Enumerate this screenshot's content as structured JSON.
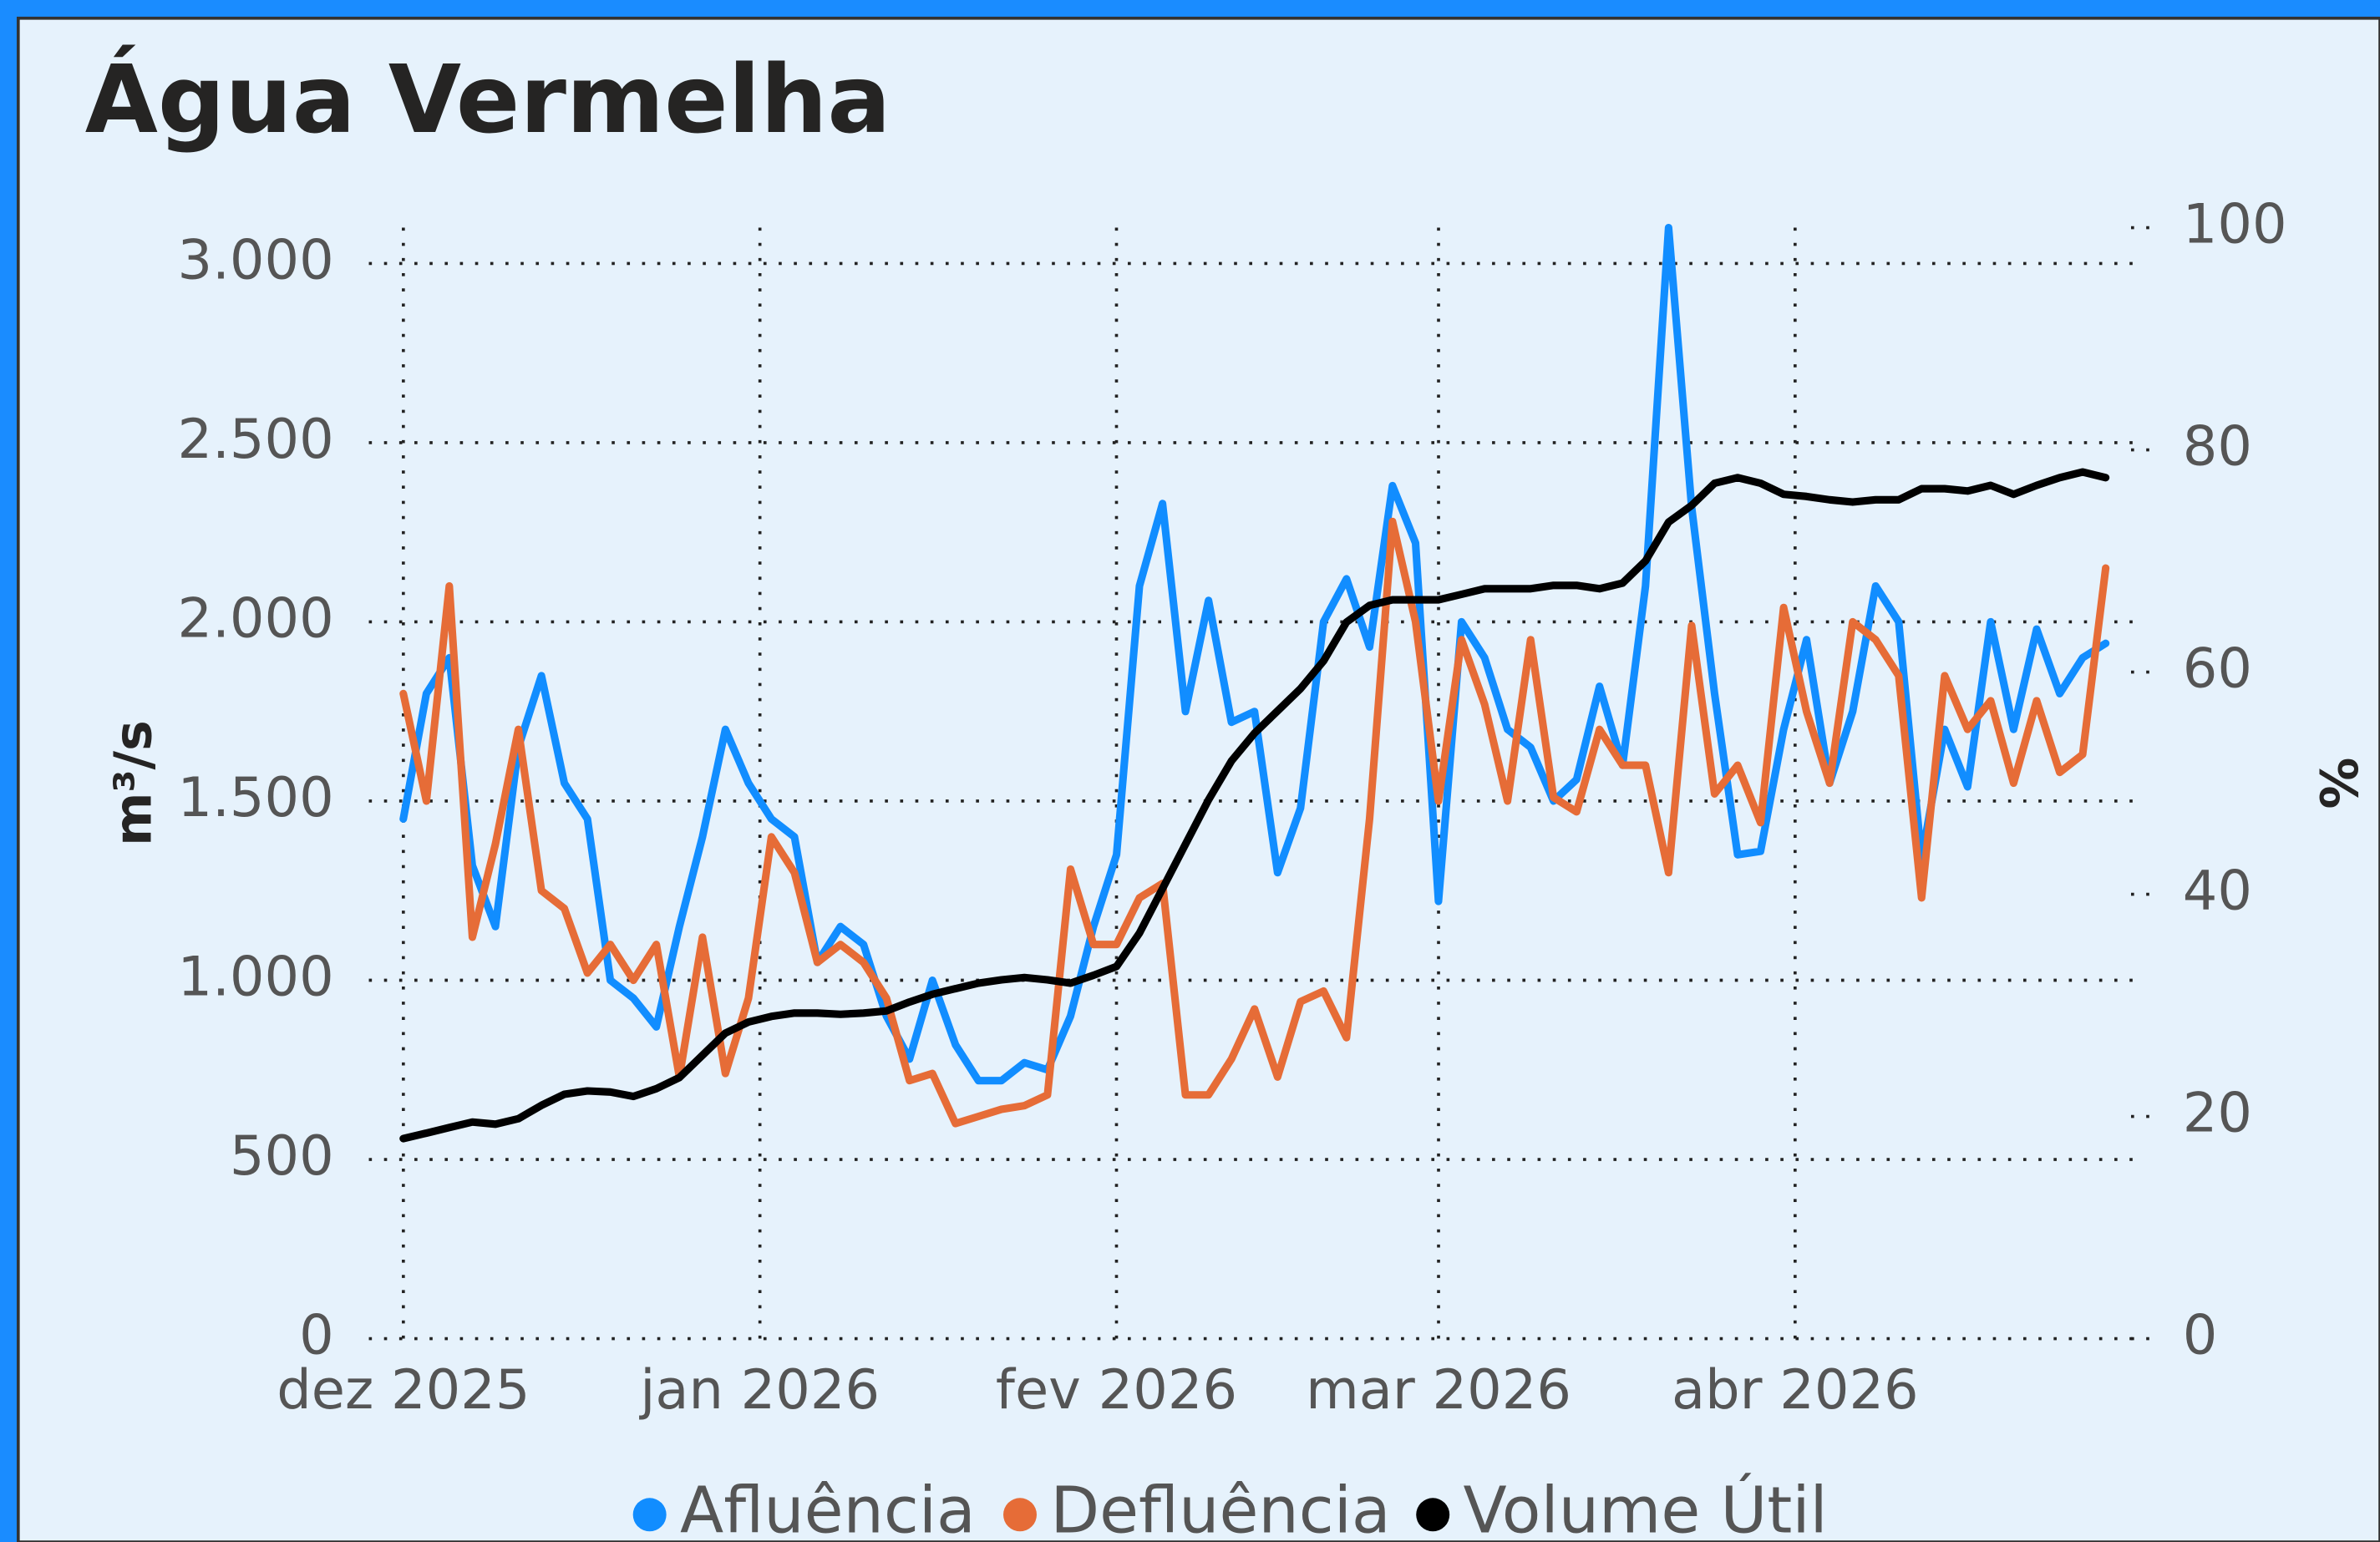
{
  "chart_data": {
    "type": "line",
    "title": "Água Vermelha",
    "y_label": "m³/s",
    "y2_label": "%",
    "x": [
      0,
      2,
      4,
      6,
      8,
      10,
      12,
      14,
      16,
      18,
      20,
      22,
      24,
      26,
      28,
      30,
      32,
      34,
      36,
      38,
      40,
      42,
      44,
      46,
      48,
      50,
      52,
      54,
      56,
      58,
      60,
      62,
      64,
      66,
      68,
      70,
      72,
      74,
      76,
      78,
      80,
      82,
      84,
      86,
      88,
      90,
      92,
      94,
      96,
      98,
      100,
      102,
      104,
      106,
      108,
      110,
      112,
      114,
      116,
      118,
      120,
      122,
      124,
      126,
      128,
      130,
      132,
      134,
      136,
      138,
      140,
      142,
      144,
      146,
      148
    ],
    "xlim": [
      -3,
      151
    ],
    "xticks": [
      {
        "value": 0,
        "label": "dez 2025"
      },
      {
        "value": 31,
        "label": "jan 2026"
      },
      {
        "value": 62,
        "label": "fev 2026"
      },
      {
        "value": 90,
        "label": "mar 2026"
      },
      {
        "value": 121,
        "label": "abr 2026"
      }
    ],
    "ylim": [
      0,
      3100
    ],
    "yticks": [
      0,
      500,
      {
        "value": 1000,
        "label": "1.000"
      },
      {
        "value": 1500,
        "label": "1.500"
      },
      {
        "value": 2000,
        "label": "2.000"
      },
      {
        "value": 2500,
        "label": "2.500"
      },
      {
        "value": 3000,
        "label": "3.000"
      }
    ],
    "y2lim": [
      0,
      100
    ],
    "y2ticks": [
      0,
      20,
      40,
      60,
      80,
      100
    ],
    "grid": true,
    "legend": "bottom",
    "series": [
      {
        "name": "Afluência",
        "color": "#118dff",
        "values": [
          1450,
          1800,
          1900,
          1320,
          1150,
          1650,
          1850,
          1550,
          1450,
          1000,
          950,
          870,
          1150,
          1400,
          1700,
          1550,
          1450,
          1400,
          1050,
          1150,
          1100,
          900,
          780,
          1000,
          820,
          720,
          720,
          770,
          750,
          900,
          1150,
          1350,
          2100,
          2330,
          1750,
          2060,
          1720,
          1750,
          1300,
          1480,
          2000,
          2120,
          1930,
          2380,
          2220,
          1220,
          2000,
          1900,
          1700,
          1650,
          1500,
          1560,
          1820,
          1600,
          2100,
          3100,
          2320,
          1800,
          1350,
          1360,
          1700,
          1950,
          1550,
          1750,
          2100,
          2000,
          1340,
          1700,
          1540,
          2000,
          1700,
          1980,
          1800,
          1900,
          1940
        ]
      },
      {
        "name": "Defluência",
        "color": "#e66c37",
        "values": [
          1800,
          1500,
          2100,
          1120,
          1380,
          1700,
          1250,
          1200,
          1020,
          1100,
          1000,
          1100,
          730,
          1120,
          740,
          950,
          1400,
          1300,
          1050,
          1100,
          1050,
          950,
          720,
          740,
          600,
          620,
          640,
          650,
          680,
          1310,
          1100,
          1100,
          1230,
          1270,
          680,
          680,
          780,
          920,
          730,
          940,
          970,
          840,
          1450,
          2280,
          2000,
          1500,
          1950,
          1770,
          1500,
          1950,
          1510,
          1470,
          1700,
          1600,
          1600,
          1300,
          1990,
          1520,
          1600,
          1440,
          2040,
          1750,
          1550,
          2000,
          1950,
          1850,
          1230,
          1850,
          1700,
          1780,
          1550,
          1780,
          1580,
          1630,
          2150
        ]
      },
      {
        "name": "Volume Útil",
        "color": "#000000",
        "axis": "y2",
        "values": [
          18,
          18.5,
          19,
          19.5,
          19.3,
          19.8,
          21,
          22,
          22.3,
          22.2,
          21.8,
          22.5,
          23.5,
          25.5,
          27.5,
          28.5,
          29,
          29.3,
          29.3,
          29.2,
          29.3,
          29.5,
          30.3,
          31,
          31.5,
          32,
          32.3,
          32.5,
          32.3,
          32,
          32.7,
          33.5,
          36.5,
          40.5,
          44.5,
          48.5,
          52,
          54.5,
          56.5,
          58.5,
          61,
          64.5,
          66,
          66.5,
          66.5,
          66.5,
          67,
          67.5,
          67.5,
          67.5,
          67.8,
          67.8,
          67.5,
          68,
          70,
          73.5,
          75,
          77,
          77.5,
          77,
          76,
          75.8,
          75.5,
          75.3,
          75.5,
          75.5,
          76.5,
          76.5,
          76.3,
          76.8,
          76,
          76.8,
          77.5,
          78,
          77.5
        ]
      }
    ]
  }
}
